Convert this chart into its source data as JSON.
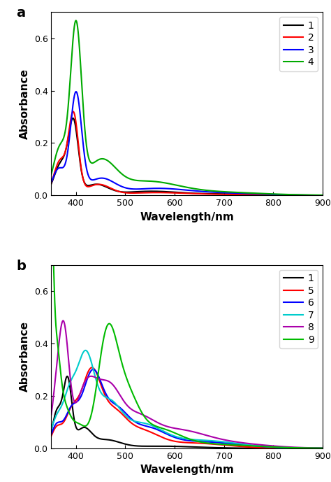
{
  "panel_a_label": "a",
  "panel_b_label": "b",
  "xlabel": "Wavelength/nm",
  "ylabel": "Absorbance",
  "xlim": [
    350,
    900
  ],
  "ylim": [
    0.0,
    0.7
  ],
  "yticks": [
    0.0,
    0.2,
    0.4,
    0.6
  ],
  "xticks": [
    400,
    500,
    600,
    700,
    800,
    900
  ],
  "panel_a": {
    "curves": [
      {
        "label": "1",
        "color": "#000000"
      },
      {
        "label": "2",
        "color": "#ff0000"
      },
      {
        "label": "3",
        "color": "#0000ff"
      },
      {
        "label": "4",
        "color": "#00aa00"
      }
    ]
  },
  "panel_b": {
    "curves": [
      {
        "label": "1",
        "color": "#000000"
      },
      {
        "label": "5",
        "color": "#ff0000"
      },
      {
        "label": "6",
        "color": "#0000ff"
      },
      {
        "label": "7",
        "color": "#00cccc"
      },
      {
        "label": "8",
        "color": "#aa00aa"
      },
      {
        "label": "9",
        "color": "#00bb00"
      }
    ]
  }
}
